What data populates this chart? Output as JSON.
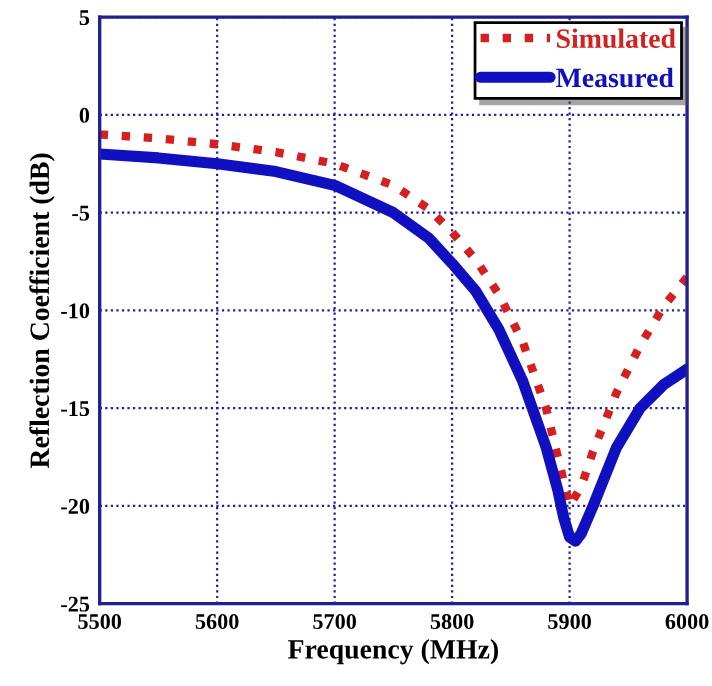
{
  "chart_data": {
    "type": "line",
    "xlabel": "Frequency (MHz)",
    "ylabel": "Reflection Coefficient (dB)",
    "xlim": [
      5500,
      6000
    ],
    "xticks": [
      5500,
      5600,
      5700,
      5800,
      5900,
      6000
    ],
    "ylim": [
      -25,
      5
    ],
    "yticks": [
      -25,
      -20,
      -15,
      -10,
      -5,
      0,
      5
    ],
    "grid": true,
    "legend": "top right",
    "series": [
      {
        "name": "Simulated",
        "color": "#d42020",
        "line_style": "dotted",
        "x": [
          5500,
          5550,
          5600,
          5650,
          5700,
          5750,
          5780,
          5800,
          5820,
          5840,
          5860,
          5880,
          5890,
          5900,
          5910,
          5920,
          5940,
          5960,
          5980,
          6000
        ],
        "values": [
          -1,
          -1.2,
          -1.5,
          -1.9,
          -2.5,
          -3.6,
          -4.8,
          -6,
          -7.4,
          -9.2,
          -11.6,
          -15,
          -17.5,
          -20,
          -19,
          -17.2,
          -14.2,
          -11.8,
          -9.8,
          -8.3
        ]
      },
      {
        "name": "Measured",
        "color": "#1010c0",
        "line_style": "solid",
        "x": [
          5500,
          5550,
          5600,
          5650,
          5700,
          5750,
          5780,
          5800,
          5820,
          5840,
          5860,
          5880,
          5890,
          5895,
          5900,
          5905,
          5910,
          5920,
          5940,
          5960,
          5980,
          6000
        ],
        "values": [
          -2,
          -2.2,
          -2.5,
          -2.9,
          -3.6,
          -5,
          -6.3,
          -7.6,
          -9,
          -11,
          -13.6,
          -17,
          -19.2,
          -20.6,
          -21.6,
          -21.8,
          -21.4,
          -20,
          -17,
          -15,
          -13.8,
          -13
        ]
      }
    ]
  }
}
